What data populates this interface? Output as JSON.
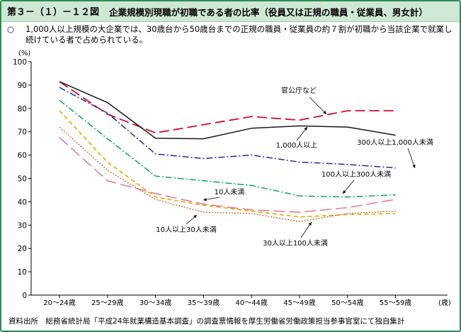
{
  "header": {
    "figure_label": "第３－（１）－１２図",
    "title": "企業規模別現職が初職である者の比率（役員又は正規の職員・従業員、男女計）"
  },
  "summary": {
    "bullet": "○",
    "text": "1,000人以上規模の大企業では、30歳台から50歳台までの正規の職員・従業員の約７割が初職から当該企業で就業し続けている者で占められている。"
  },
  "source": "資料出所　総務省統計局「平成24年就業構造基本調査」の調査票情報を厚生労働省労働政策担当参事官室にて独自集計",
  "colors": {
    "accent_border": "#2e8b57",
    "header_bg": "#cfe8d6"
  },
  "chart_data": {
    "type": "line",
    "ylabel": "(%)",
    "xunit": "(歳)",
    "ylim": [
      0,
      100
    ],
    "yticks": [
      0,
      10,
      20,
      30,
      40,
      50,
      60,
      70,
      80,
      90,
      100
    ],
    "categories": [
      "20～24歳",
      "25～29歳",
      "30～34歳",
      "35～39歳",
      "40～44歳",
      "45～49歳",
      "50～54歳",
      "55～59歳"
    ],
    "grid": false,
    "series": [
      {
        "name": "官公庁など",
        "color": "#c8102e",
        "dash": "14,6",
        "width": 1.8,
        "values": [
          91.5,
          77.5,
          69.5,
          73,
          76.5,
          75,
          79,
          79
        ]
      },
      {
        "name": "1,000人以上",
        "color": "#1a1a1a",
        "dash": "",
        "width": 1.5,
        "values": [
          91.5,
          82.5,
          67.2,
          67,
          71.5,
          72.5,
          72,
          68.5
        ]
      },
      {
        "name": "300人以上1,000人未満",
        "color": "#2b2b8f",
        "dash": "9,3,2,3",
        "width": 1.5,
        "values": [
          89,
          78,
          60.5,
          58.5,
          60,
          57,
          56,
          54.5
        ]
      },
      {
        "name": "100人以上300人未満",
        "color": "#18a058",
        "dash": "9,3,2,3",
        "width": 1.5,
        "values": [
          83.5,
          67,
          51,
          49,
          47,
          42.5,
          42,
          43
        ]
      },
      {
        "name": "10人未満",
        "color": "#d97a9a",
        "dash": "16,6",
        "width": 1.5,
        "values": [
          67.5,
          49,
          43.5,
          39,
          36.5,
          35.5,
          37.5,
          41
        ]
      },
      {
        "name": "30人以上100人未満",
        "color": "#e8a000",
        "dash": "6,4",
        "width": 1.5,
        "values": [
          79,
          57,
          42,
          38.5,
          36,
          33.5,
          34.5,
          35
        ]
      },
      {
        "name": "10人以上30人未満",
        "color": "#b85c20",
        "dash": "2,2",
        "width": 1.2,
        "values": [
          72,
          53.5,
          41,
          35.5,
          35,
          31.5,
          35,
          36
        ]
      }
    ],
    "annotations": [
      {
        "text": "官公庁など",
        "series": "官公庁など"
      },
      {
        "text": "1,000人以上",
        "series": "1,000人以上"
      },
      {
        "text": "300人以上1,000人未満",
        "series": "300人以上1,000人未満"
      },
      {
        "text": "100人以上300人未満",
        "series": "100人以上300人未満"
      },
      {
        "text": "10人未満",
        "series": "10人未満"
      },
      {
        "text": "10人以上30人未満",
        "series": "10人以上30人未満"
      },
      {
        "text": "30人以上100人未満",
        "series": "30人以上100人未満"
      }
    ]
  }
}
